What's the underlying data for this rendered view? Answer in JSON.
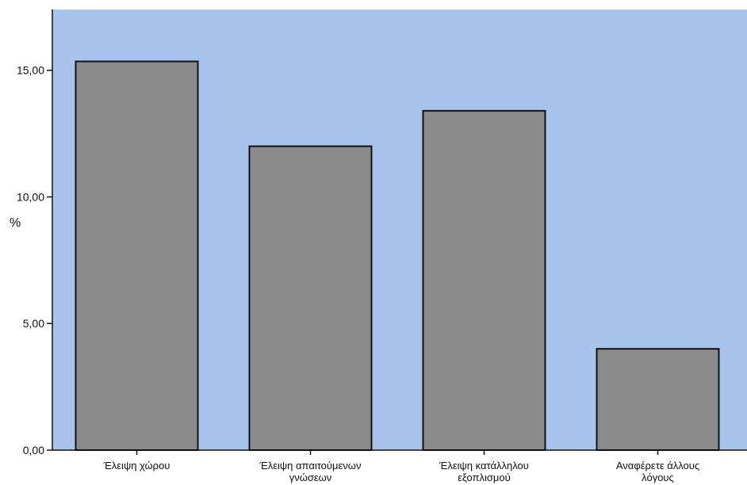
{
  "chart_data": {
    "type": "bar",
    "title": "",
    "xlabel": "",
    "ylabel": "%",
    "categories": [
      [
        "Έλειψη χώρου"
      ],
      [
        "Έλειψη απαιτούμενων",
        "γνώσεων"
      ],
      [
        "Έλειψη κατάλληλου",
        "εξοπλισμού"
      ],
      [
        "Αναφέρετε άλλους",
        "λόγους"
      ]
    ],
    "values": [
      15.35,
      12.0,
      13.4,
      4.0
    ],
    "ylim": [
      0,
      17.4
    ],
    "yticks": [
      0,
      5,
      10,
      15
    ],
    "ytick_labels": [
      "0,00",
      "5,00",
      "10,00",
      "15,00"
    ],
    "grid": false,
    "legend": "none",
    "colors": {
      "plot_background": "#a8c4ec",
      "bar_fill": "#8b8b8b",
      "bar_stroke": "#111111",
      "axis": "#111111"
    }
  }
}
